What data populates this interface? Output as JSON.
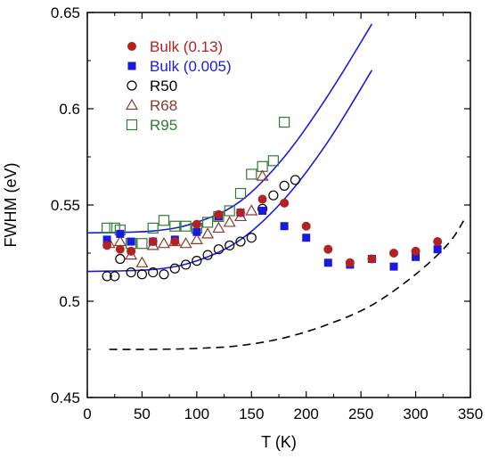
{
  "chart_data": {
    "type": "scatter",
    "xlabel": "T (K)",
    "ylabel": "FWHM (eV)",
    "xlim": [
      0,
      350
    ],
    "ylim": [
      0.45,
      0.65
    ],
    "xticks": [
      0,
      50,
      100,
      150,
      200,
      250,
      300,
      350
    ],
    "yticks": [
      0.45,
      0.5,
      0.55,
      0.6,
      0.65
    ],
    "xtick_labels": [
      "0",
      "50",
      "100",
      "150",
      "200",
      "250",
      "300",
      "350"
    ],
    "ytick_labels": [
      "0.45",
      "0.5",
      "0.55",
      "0.6",
      "0.65"
    ],
    "grid": false,
    "legend_position": "top-left",
    "series": [
      {
        "name": "Bulk (0.13)",
        "marker": "filled-circle",
        "color": "#b22222",
        "points": [
          [
            18,
            0.529
          ],
          [
            30,
            0.527
          ],
          [
            40,
            0.526
          ],
          [
            60,
            0.531
          ],
          [
            80,
            0.531
          ],
          [
            100,
            0.54
          ],
          [
            120,
            0.545
          ],
          [
            140,
            0.546
          ],
          [
            160,
            0.553
          ],
          [
            180,
            0.551
          ],
          [
            200,
            0.539
          ],
          [
            220,
            0.527
          ],
          [
            240,
            0.52
          ],
          [
            260,
            0.522
          ],
          [
            280,
            0.525
          ],
          [
            300,
            0.526
          ],
          [
            320,
            0.531
          ]
        ]
      },
      {
        "name": "Bulk (0.005)",
        "marker": "filled-square",
        "color": "#1a1adc",
        "points": [
          [
            18,
            0.532
          ],
          [
            30,
            0.535
          ],
          [
            40,
            0.531
          ],
          [
            60,
            0.531
          ],
          [
            80,
            0.532
          ],
          [
            100,
            0.536
          ],
          [
            120,
            0.544
          ],
          [
            140,
            0.546
          ],
          [
            160,
            0.547
          ],
          [
            180,
            0.539
          ],
          [
            200,
            0.533
          ],
          [
            220,
            0.52
          ],
          [
            240,
            0.519
          ],
          [
            260,
            0.522
          ],
          [
            280,
            0.518
          ],
          [
            300,
            0.523
          ],
          [
            320,
            0.527
          ]
        ]
      },
      {
        "name": "R50",
        "marker": "open-circle",
        "color": "#000000",
        "points": [
          [
            18,
            0.513
          ],
          [
            25,
            0.513
          ],
          [
            30,
            0.522
          ],
          [
            40,
            0.515
          ],
          [
            50,
            0.514
          ],
          [
            60,
            0.515
          ],
          [
            70,
            0.514
          ],
          [
            80,
            0.517
          ],
          [
            90,
            0.519
          ],
          [
            100,
            0.521
          ],
          [
            110,
            0.524
          ],
          [
            120,
            0.527
          ],
          [
            130,
            0.529
          ],
          [
            140,
            0.531
          ],
          [
            150,
            0.533
          ],
          [
            160,
            0.548
          ],
          [
            170,
            0.555
          ],
          [
            180,
            0.56
          ],
          [
            190,
            0.563
          ]
        ]
      },
      {
        "name": "R68",
        "marker": "open-triangle",
        "color": "#8b3a2a",
        "points": [
          [
            20,
            0.53
          ],
          [
            30,
            0.531
          ],
          [
            40,
            0.524
          ],
          [
            50,
            0.52
          ],
          [
            60,
            0.529
          ],
          [
            70,
            0.53
          ],
          [
            80,
            0.531
          ],
          [
            90,
            0.53
          ],
          [
            100,
            0.532
          ],
          [
            110,
            0.535
          ],
          [
            120,
            0.538
          ],
          [
            130,
            0.541
          ],
          [
            140,
            0.544
          ],
          [
            150,
            0.547
          ],
          [
            160,
            0.565
          ]
        ]
      },
      {
        "name": "R95",
        "marker": "open-square",
        "color": "#2e7d32",
        "points": [
          [
            18,
            0.538
          ],
          [
            25,
            0.538
          ],
          [
            30,
            0.537
          ],
          [
            40,
            0.53
          ],
          [
            50,
            0.53
          ],
          [
            60,
            0.538
          ],
          [
            70,
            0.542
          ],
          [
            80,
            0.539
          ],
          [
            90,
            0.539
          ],
          [
            100,
            0.538
          ],
          [
            110,
            0.541
          ],
          [
            120,
            0.544
          ],
          [
            130,
            0.547
          ],
          [
            140,
            0.556
          ],
          [
            150,
            0.566
          ],
          [
            160,
            0.57
          ],
          [
            170,
            0.573
          ],
          [
            180,
            0.593
          ]
        ]
      }
    ],
    "fit_lines": [
      {
        "style": "solid",
        "color": "#1a1adc",
        "points": [
          [
            0,
            0.5355
          ],
          [
            60,
            0.5365
          ],
          [
            100,
            0.541
          ],
          [
            140,
            0.552
          ],
          [
            180,
            0.575
          ],
          [
            220,
            0.607
          ],
          [
            260,
            0.644
          ]
        ]
      },
      {
        "style": "solid",
        "color": "#1a1adc",
        "points": [
          [
            0,
            0.5155
          ],
          [
            60,
            0.5165
          ],
          [
            100,
            0.521
          ],
          [
            140,
            0.532
          ],
          [
            180,
            0.553
          ],
          [
            220,
            0.583
          ],
          [
            260,
            0.62
          ]
        ]
      },
      {
        "style": "dashed",
        "color": "#000000",
        "points": [
          [
            20,
            0.475
          ],
          [
            60,
            0.475
          ],
          [
            100,
            0.4755
          ],
          [
            140,
            0.477
          ],
          [
            180,
            0.481
          ],
          [
            220,
            0.488
          ],
          [
            260,
            0.498
          ],
          [
            300,
            0.514
          ],
          [
            330,
            0.53
          ],
          [
            345,
            0.543
          ]
        ]
      }
    ]
  }
}
